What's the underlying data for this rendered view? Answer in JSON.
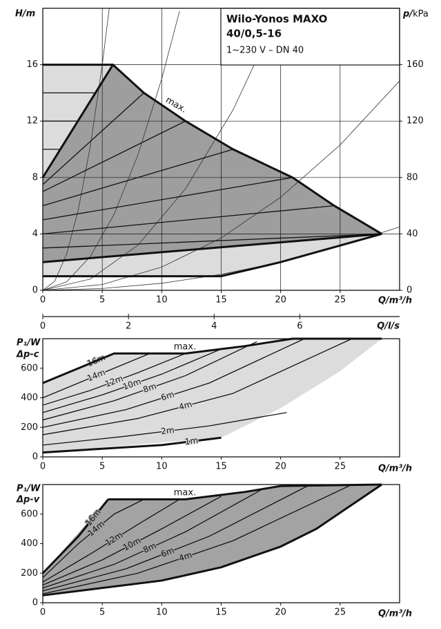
{
  "chart_data": [
    {
      "type": "line",
      "title": "Wilo-Yonos MAXO",
      "subtitle": "40/0,5-16",
      "note": "1~230 V – DN 40",
      "annotation": "max.",
      "x_label": "Q/m³/h",
      "y_label": "H/m",
      "y2_label": "kPa",
      "y2_prefix": "p/",
      "x2_label": "Q/l/s",
      "xlim": [
        0,
        30
      ],
      "xticks": [
        0,
        5,
        10,
        15,
        20,
        25
      ],
      "ylim": [
        0,
        20
      ],
      "yticks": [
        0,
        4,
        8,
        12,
        16
      ],
      "y2lim": [
        0,
        200
      ],
      "y2ticks": [
        0,
        40,
        80,
        120,
        160
      ],
      "x2lim": [
        0,
        8.33
      ],
      "x2ticks": [
        0,
        2,
        4,
        6
      ],
      "grid": true,
      "areas": [
        {
          "color": "#dcdcdc",
          "x": [
            0,
            5.9,
            8.5,
            12,
            16,
            21,
            24.5,
            28.5,
            20,
            15,
            0
          ],
          "values": [
            16,
            16,
            14,
            12,
            10,
            8,
            6,
            4,
            2,
            1,
            1
          ]
        },
        {
          "color": "#9e9e9e",
          "x": [
            0,
            5.9,
            8.5,
            12,
            16,
            21,
            24.5,
            28.5,
            0
          ],
          "values": [
            8,
            16,
            14,
            12,
            10,
            8,
            6,
            4,
            2
          ]
        }
      ],
      "series": [
        {
          "color": "#333",
          "line_width": 0.8,
          "x": [
            0,
            1,
            2,
            3,
            4,
            5,
            5.59
          ],
          "values": [
            0,
            0.64,
            2.56,
            5.76,
            10.24,
            16,
            20
          ]
        },
        {
          "color": "#333",
          "line_width": 0.8,
          "x": [
            0,
            2,
            4,
            6,
            8,
            10,
            11.5
          ],
          "values": [
            0,
            0.6,
            2.4,
            5.4,
            9.6,
            15,
            19.8
          ]
        },
        {
          "color": "#333",
          "line_width": 0.8,
          "x": [
            0,
            4,
            8,
            12,
            16,
            20
          ],
          "values": [
            0,
            0.8,
            3.2,
            7.2,
            12.8,
            20
          ]
        },
        {
          "color": "#333",
          "line_width": 0.8,
          "x": [
            0,
            5,
            10,
            15,
            20,
            25,
            30
          ],
          "values": [
            0,
            0.41,
            1.65,
            3.71,
            6.6,
            10.31,
            14.85
          ]
        },
        {
          "color": "#333",
          "line_width": 0.8,
          "x": [
            0,
            5,
            10,
            15,
            20,
            25,
            30
          ],
          "values": [
            0,
            0.13,
            0.5,
            1.13,
            2,
            3.13,
            4.5
          ]
        },
        {
          "color": "#111",
          "line_width": 1.3,
          "x": [
            0,
            1.475
          ],
          "values": [
            10,
            10
          ]
        },
        {
          "color": "#111",
          "line_width": 1.3,
          "x": [
            0,
            2.95
          ],
          "values": [
            12,
            12
          ]
        },
        {
          "color": "#111",
          "line_width": 1.3,
          "x": [
            0,
            4.425
          ],
          "values": [
            14,
            14
          ]
        },
        {
          "color": "#111",
          "line_width": 1.3,
          "x": [
            0,
            28.5
          ],
          "values": [
            3,
            4
          ]
        },
        {
          "color": "#111",
          "line_width": 1.3,
          "x": [
            0,
            24.5
          ],
          "values": [
            4,
            6
          ]
        },
        {
          "color": "#111",
          "line_width": 1.3,
          "x": [
            0,
            21
          ],
          "values": [
            5,
            8
          ]
        },
        {
          "color": "#111",
          "line_width": 1.3,
          "x": [
            0,
            16
          ],
          "values": [
            6,
            10
          ]
        },
        {
          "color": "#111",
          "line_width": 1.3,
          "x": [
            0,
            12
          ],
          "values": [
            7,
            12
          ]
        },
        {
          "color": "#111",
          "line_width": 1.3,
          "x": [
            0,
            8.5
          ],
          "values": [
            7.5,
            14
          ]
        },
        {
          "color": "#111",
          "line_width": 3,
          "x": [
            0,
            5.9
          ],
          "values": [
            16,
            16
          ]
        },
        {
          "color": "#111",
          "line_width": 3,
          "x": [
            0,
            5.9,
            8.5,
            12,
            16,
            21,
            24.5,
            28.5
          ],
          "values": [
            8,
            16,
            14,
            12,
            10,
            8,
            6,
            4
          ]
        },
        {
          "color": "#111",
          "line_width": 3,
          "x": [
            0,
            28.5
          ],
          "values": [
            2,
            4
          ]
        },
        {
          "color": "#111",
          "line_width": 3,
          "x": [
            0,
            15,
            20,
            28.5
          ],
          "values": [
            1,
            1,
            2,
            4
          ]
        }
      ]
    },
    {
      "type": "line",
      "annotation": "max.",
      "x_label": "Q/m³/h",
      "y_label": "P₁/W",
      "y_sub_label": "Δp-c",
      "xlim": [
        0,
        30
      ],
      "xticks": [
        0,
        5,
        10,
        15,
        20,
        25
      ],
      "ylim": [
        0,
        800
      ],
      "yticks": [
        0,
        200,
        400,
        600
      ],
      "grid": false,
      "areas": [
        {
          "color": "#dcdcdc",
          "x": [
            0,
            6,
            12,
            17,
            21,
            28.5,
            25,
            20,
            15,
            0
          ],
          "values": [
            500,
            700,
            700,
            750,
            800,
            800,
            580,
            330,
            130,
            30
          ]
        }
      ],
      "series": [
        {
          "name": "16m",
          "color": "#111",
          "line_width": 1.3,
          "x": [
            0,
            3,
            6
          ],
          "values": [
            500,
            600,
            700
          ]
        },
        {
          "name": "14m",
          "color": "#111",
          "line_width": 1.3,
          "x": [
            0,
            3,
            6,
            9
          ],
          "values": [
            400,
            500,
            600,
            700
          ]
        },
        {
          "name": "12m",
          "color": "#111",
          "line_width": 1.3,
          "x": [
            0,
            4,
            8,
            12
          ],
          "values": [
            350,
            450,
            570,
            700
          ]
        },
        {
          "name": "10m",
          "color": "#111",
          "line_width": 1.3,
          "x": [
            0,
            5,
            10,
            15
          ],
          "values": [
            300,
            420,
            560,
            730
          ]
        },
        {
          "name": "8m",
          "color": "#111",
          "line_width": 1.3,
          "x": [
            0,
            6,
            12,
            18
          ],
          "values": [
            250,
            380,
            550,
            780
          ]
        },
        {
          "name": "6m",
          "color": "#111",
          "line_width": 1.3,
          "x": [
            0,
            7,
            14,
            22
          ],
          "values": [
            200,
            320,
            500,
            800
          ]
        },
        {
          "name": "4m",
          "color": "#111",
          "line_width": 1.3,
          "x": [
            0,
            8,
            16,
            26
          ],
          "values": [
            150,
            260,
            430,
            800
          ]
        },
        {
          "name": "2m",
          "color": "#111",
          "line_width": 1.3,
          "x": [
            0,
            7,
            14,
            20.5
          ],
          "values": [
            80,
            140,
            210,
            300
          ]
        },
        {
          "name": "1m",
          "color": "#111",
          "line_width": 3,
          "x": [
            0,
            10,
            15
          ],
          "values": [
            30,
            80,
            130
          ]
        },
        {
          "color": "#111",
          "line_width": 3,
          "x": [
            0,
            6,
            12,
            17,
            21,
            28.5
          ],
          "values": [
            500,
            700,
            700,
            750,
            800,
            800
          ]
        }
      ]
    },
    {
      "type": "line",
      "annotation": "max.",
      "x_label": "Q/m³/h",
      "y_label": "P₁/W",
      "y_sub_label": "Δp-v",
      "xlim": [
        0,
        30
      ],
      "xticks": [
        0,
        5,
        10,
        15,
        20,
        25
      ],
      "ylim": [
        0,
        800
      ],
      "yticks": [
        0,
        200,
        400,
        600
      ],
      "grid": false,
      "areas": [
        {
          "color": "#a3a3a3",
          "x": [
            0,
            5.5,
            12,
            17,
            20,
            28.5,
            23,
            20,
            15,
            10,
            0
          ],
          "values": [
            200,
            700,
            700,
            750,
            790,
            800,
            500,
            380,
            240,
            150,
            50
          ]
        }
      ],
      "series": [
        {
          "name": "16m",
          "color": "#111",
          "line_width": 3,
          "x": [
            0,
            3,
            5.5
          ],
          "values": [
            200,
            450,
            700
          ]
        },
        {
          "name": "14m",
          "color": "#111",
          "line_width": 1.3,
          "x": [
            0,
            3,
            6,
            8.5
          ],
          "values": [
            170,
            400,
            600,
            700
          ]
        },
        {
          "name": "12m",
          "color": "#111",
          "line_width": 1.3,
          "x": [
            0,
            4,
            8,
            11.5
          ],
          "values": [
            140,
            330,
            530,
            700
          ]
        },
        {
          "name": "10m",
          "color": "#111",
          "line_width": 1.3,
          "x": [
            0,
            5,
            10,
            15
          ],
          "values": [
            120,
            290,
            500,
            720
          ]
        },
        {
          "name": "8m",
          "color": "#111",
          "line_width": 1.3,
          "x": [
            0,
            6,
            12,
            18.5
          ],
          "values": [
            100,
            260,
            480,
            770
          ]
        },
        {
          "name": "6m",
          "color": "#111",
          "line_width": 1.3,
          "x": [
            0,
            7,
            14,
            22.5
          ],
          "values": [
            80,
            230,
            450,
            800
          ]
        },
        {
          "name": "4m",
          "color": "#111",
          "line_width": 1.3,
          "x": [
            0,
            8,
            16,
            26
          ],
          "values": [
            60,
            200,
            420,
            800
          ]
        },
        {
          "color": "#111",
          "line_width": 3,
          "x": [
            5.5,
            12,
            17,
            20,
            28.5
          ],
          "values": [
            700,
            700,
            750,
            790,
            800
          ]
        },
        {
          "color": "#111",
          "line_width": 3,
          "x": [
            0,
            10,
            15,
            20,
            23,
            28.5
          ],
          "values": [
            50,
            150,
            240,
            380,
            500,
            800
          ]
        }
      ]
    }
  ]
}
